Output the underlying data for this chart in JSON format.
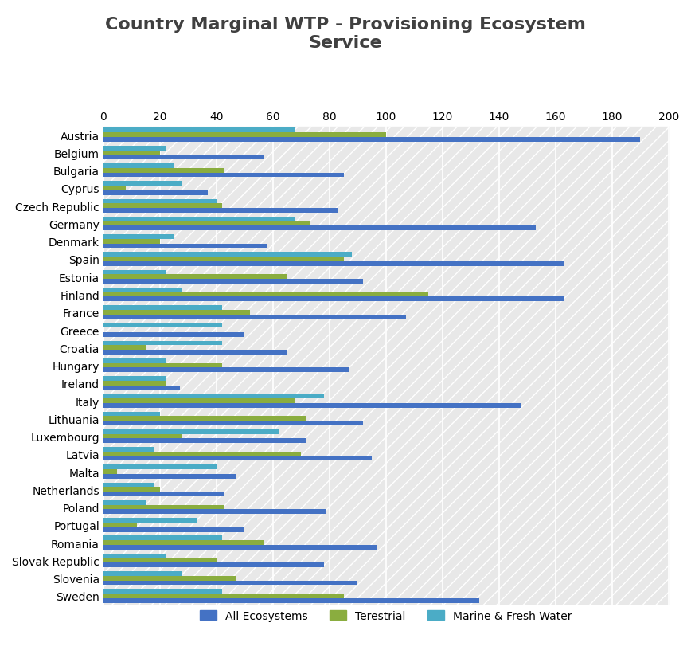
{
  "title": "Country Marginal WTP - Provisioning Ecosystem\nService",
  "categories": [
    "Austria",
    "Belgium",
    "Bulgaria",
    "Cyprus",
    "Czech Republic",
    "Germany",
    "Denmark",
    "Spain",
    "Estonia",
    "Finland",
    "France",
    "Greece",
    "Croatia",
    "Hungary",
    "Ireland",
    "Italy",
    "Lithuania",
    "Luxembourg",
    "Latvia",
    "Malta",
    "Netherlands",
    "Poland",
    "Portugal",
    "Romania",
    "Slovak Republic",
    "Slovenia",
    "Sweden"
  ],
  "all_ecosystems": [
    190,
    57,
    85,
    37,
    83,
    153,
    58,
    163,
    92,
    163,
    107,
    50,
    65,
    87,
    27,
    148,
    92,
    72,
    95,
    47,
    43,
    79,
    50,
    97,
    78,
    90,
    133
  ],
  "terrestrial": [
    100,
    20,
    43,
    8,
    42,
    73,
    20,
    85,
    65,
    115,
    52,
    0,
    15,
    42,
    22,
    68,
    72,
    28,
    70,
    5,
    20,
    43,
    12,
    57,
    40,
    47,
    85
  ],
  "marine_fresh": [
    68,
    22,
    25,
    28,
    40,
    68,
    25,
    88,
    22,
    28,
    42,
    42,
    42,
    22,
    22,
    78,
    20,
    62,
    18,
    40,
    18,
    15,
    33,
    42,
    22,
    28,
    42
  ],
  "color_all": "#4472C4",
  "color_terrestrial": "#8AAD3F",
  "color_marine": "#4BACC6",
  "xlim": [
    0,
    200
  ],
  "xticks": [
    0,
    20,
    40,
    60,
    80,
    100,
    120,
    140,
    160,
    180,
    200
  ],
  "background_color": "#E8E8E8",
  "grid_color": "#FFFFFF",
  "bar_height": 0.26,
  "title_fontsize": 16,
  "tick_fontsize": 10,
  "label_fontsize": 10
}
